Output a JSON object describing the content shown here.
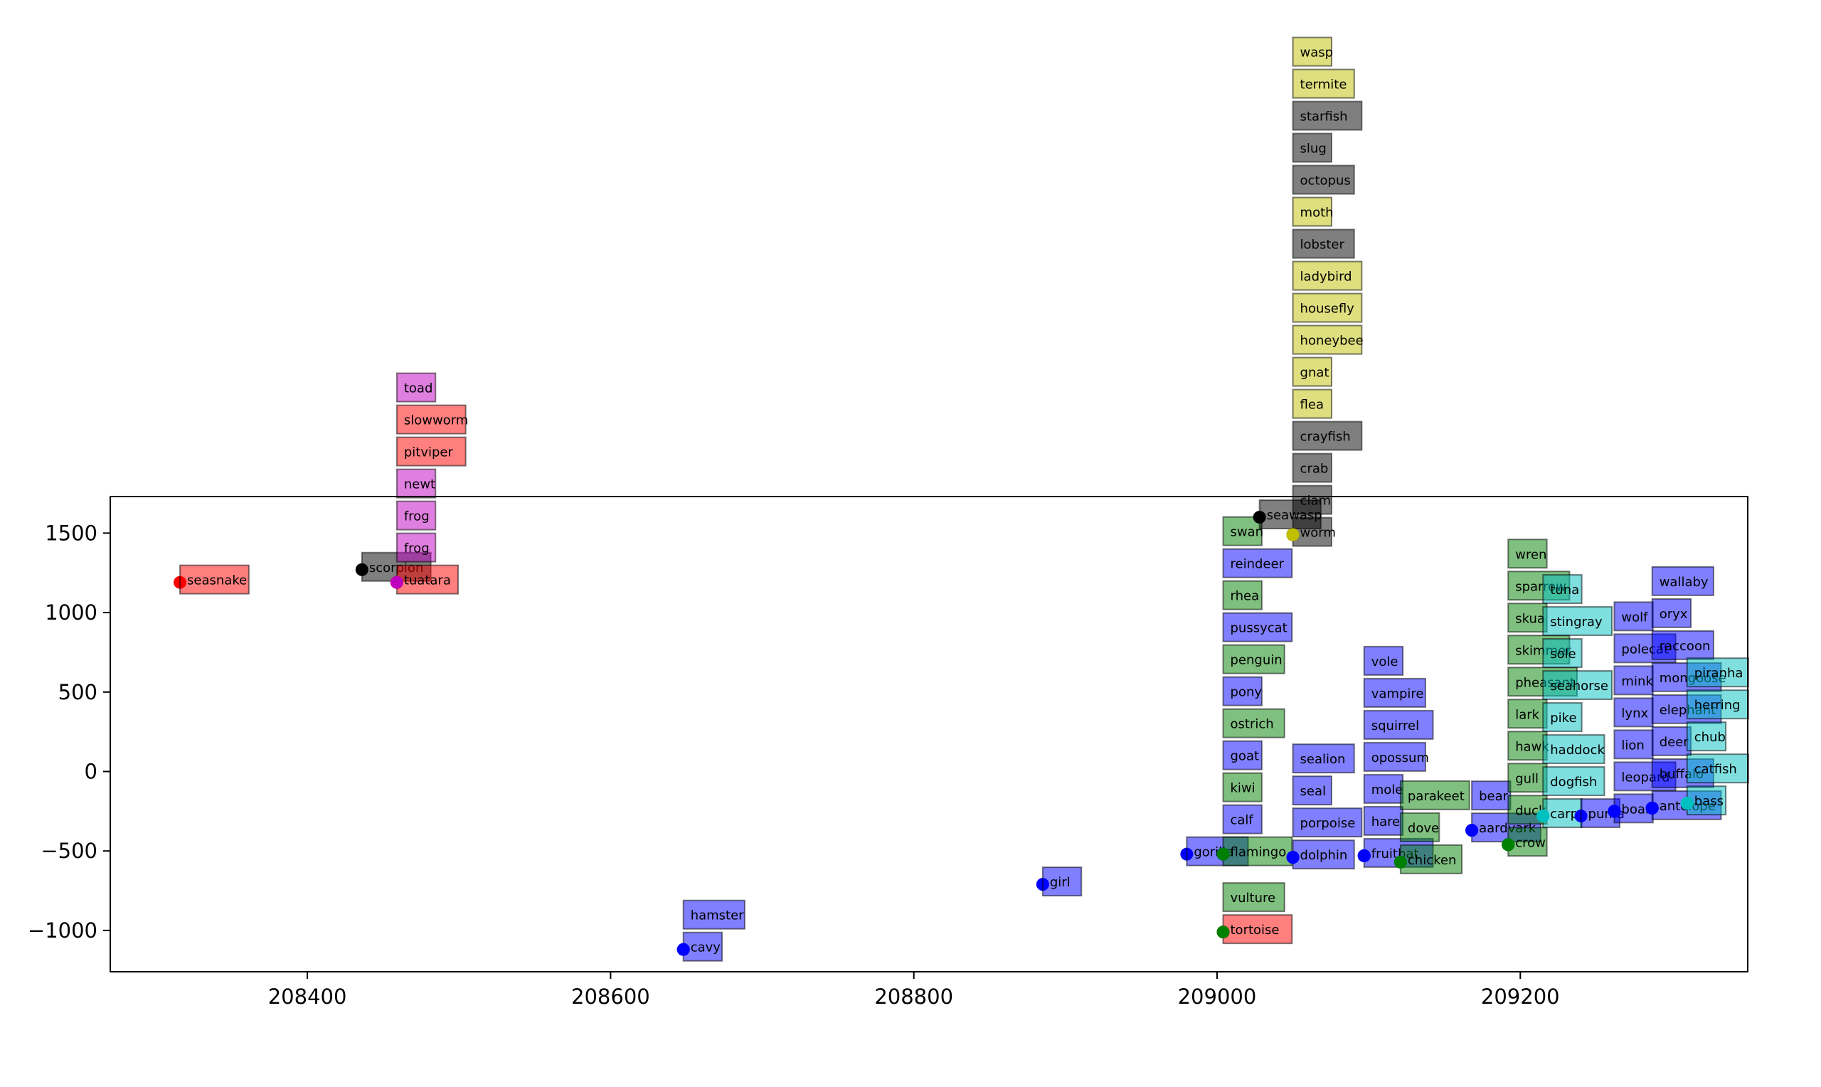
{
  "colors": {
    "mammal": "#0000ff",
    "bird": "#008000",
    "reptile": "#ff0000",
    "amphibian": "#bf00bf",
    "fish": "#00bfbf",
    "insect": "#bfbf00",
    "invertebrate": "#000000"
  },
  "chart_data": {
    "type": "scatter",
    "title": "",
    "xlabel": "",
    "ylabel": "",
    "xlim": [
      208270,
      209350
    ],
    "ylim": [
      -1260,
      1730
    ],
    "xticks": [
      {
        "value": 208400,
        "label": "208400"
      },
      {
        "value": 208600,
        "label": "208600"
      },
      {
        "value": 208800,
        "label": "208800"
      },
      {
        "value": 209000,
        "label": "209000"
      },
      {
        "value": 209200,
        "label": "209200"
      }
    ],
    "yticks": [
      {
        "value": 1500,
        "label": "1500"
      },
      {
        "value": 1000,
        "label": "1000"
      },
      {
        "value": 500,
        "label": "500"
      },
      {
        "value": 0,
        "label": "0"
      },
      {
        "value": -500,
        "label": "−500"
      },
      {
        "value": -1000,
        "label": "−1000"
      }
    ],
    "grid": false,
    "points": [
      {
        "label": "seasnake",
        "x": 208316,
        "y": 1190,
        "cls": "reptile"
      },
      {
        "label": "scorpion",
        "x": 208436,
        "y": 1270,
        "cls": "invertebrate"
      },
      {
        "label": "tuatara",
        "x": 208459,
        "y": 1190,
        "cls": "reptile"
      },
      {
        "label": "frog",
        "x": 208459,
        "y": 1190,
        "cls": "amphibian",
        "stack": [
          28
        ]
      },
      {
        "label": "frog",
        "x": 208459,
        "y": 1190,
        "cls": "amphibian"
      },
      {
        "label": "newt",
        "x": 208459,
        "y": 1190,
        "cls": "amphibian"
      },
      {
        "label": "pitviper",
        "x": 208459,
        "y": 1190,
        "cls": "reptile"
      },
      {
        "label": "slowworm",
        "x": 208459,
        "y": 1190,
        "cls": "reptile"
      },
      {
        "label": "toad",
        "x": 208459,
        "y": 1190,
        "cls": "amphibian"
      },
      {
        "label": "cavy",
        "x": 208648,
        "y": -1120,
        "cls": "mammal"
      },
      {
        "label": "hamster",
        "x": 208648,
        "y": -1120,
        "cls": "mammal"
      },
      {
        "label": "girl",
        "x": 208885,
        "y": -710,
        "cls": "mammal"
      },
      {
        "label": "gorilla",
        "x": 208980,
        "y": -520,
        "cls": "mammal"
      },
      {
        "label": "tortoise",
        "x": 209004,
        "y": -1010,
        "cls": "reptile"
      },
      {
        "label": "vulture",
        "x": 209004,
        "y": -1010,
        "cls": "bird"
      },
      {
        "label": "flamingo",
        "x": 209004,
        "y": -520,
        "cls": "bird"
      },
      {
        "label": "calf",
        "x": 209004,
        "y": -520,
        "cls": "mammal"
      },
      {
        "label": "kiwi",
        "x": 209004,
        "y": -520,
        "cls": "bird"
      },
      {
        "label": "goat",
        "x": 209004,
        "y": -520,
        "cls": "mammal"
      },
      {
        "label": "ostrich",
        "x": 209004,
        "y": -520,
        "cls": "bird"
      },
      {
        "label": "pony",
        "x": 209004,
        "y": -520,
        "cls": "mammal"
      },
      {
        "label": "penguin",
        "x": 209004,
        "y": -520,
        "cls": "bird"
      },
      {
        "label": "pussycat",
        "x": 209004,
        "y": -520,
        "cls": "mammal"
      },
      {
        "label": "rhea",
        "x": 209004,
        "y": -520,
        "cls": "bird"
      },
      {
        "label": "reindeer",
        "x": 209004,
        "y": -520,
        "cls": "mammal"
      },
      {
        "label": "swan",
        "x": 209004,
        "y": -520,
        "cls": "bird"
      },
      {
        "label": "dolphin",
        "x": 209050,
        "y": -540,
        "cls": "mammal"
      },
      {
        "label": "porpoise",
        "x": 209050,
        "y": -540,
        "cls": "mammal"
      },
      {
        "label": "seal",
        "x": 209050,
        "y": -540,
        "cls": "mammal"
      },
      {
        "label": "sealion",
        "x": 209050,
        "y": -540,
        "cls": "mammal"
      },
      {
        "label": "seawasp",
        "x": 209028,
        "y": 1600,
        "cls": "invertebrate"
      },
      {
        "label": "worm",
        "x": 209050,
        "y": 1490,
        "cls": "invertebrate"
      },
      {
        "label": "clam",
        "x": 209050,
        "y": 1490,
        "cls": "invertebrate"
      },
      {
        "label": "crab",
        "x": 209050,
        "y": 1490,
        "cls": "invertebrate"
      },
      {
        "label": "crayfish",
        "x": 209050,
        "y": 1490,
        "cls": "invertebrate"
      },
      {
        "label": "flea",
        "x": 209050,
        "y": 1490,
        "cls": "insect"
      },
      {
        "label": "gnat",
        "x": 209050,
        "y": 1490,
        "cls": "insect"
      },
      {
        "label": "honeybee",
        "x": 209050,
        "y": 1490,
        "cls": "insect"
      },
      {
        "label": "housefly",
        "x": 209050,
        "y": 1490,
        "cls": "insect"
      },
      {
        "label": "ladybird",
        "x": 209050,
        "y": 1490,
        "cls": "insect"
      },
      {
        "label": "lobster",
        "x": 209050,
        "y": 1490,
        "cls": "invertebrate"
      },
      {
        "label": "moth",
        "x": 209050,
        "y": 1490,
        "cls": "insect"
      },
      {
        "label": "octopus",
        "x": 209050,
        "y": 1490,
        "cls": "invertebrate"
      },
      {
        "label": "slug",
        "x": 209050,
        "y": 1490,
        "cls": "invertebrate"
      },
      {
        "label": "starfish",
        "x": 209050,
        "y": 1490,
        "cls": "invertebrate"
      },
      {
        "label": "termite",
        "x": 209050,
        "y": 1490,
        "cls": "insect"
      },
      {
        "label": "wasp",
        "x": 209050,
        "y": 1490,
        "cls": "insect"
      },
      {
        "label": "fruitbat",
        "x": 209097,
        "y": -530,
        "cls": "mammal"
      },
      {
        "label": "hare",
        "x": 209097,
        "y": -530,
        "cls": "mammal"
      },
      {
        "label": "mole",
        "x": 209097,
        "y": -530,
        "cls": "mammal"
      },
      {
        "label": "opossum",
        "x": 209097,
        "y": -530,
        "cls": "mammal"
      },
      {
        "label": "squirrel",
        "x": 209097,
        "y": -530,
        "cls": "mammal"
      },
      {
        "label": "vampire",
        "x": 209097,
        "y": -530,
        "cls": "mammal"
      },
      {
        "label": "vole",
        "x": 209097,
        "y": -530,
        "cls": "mammal"
      },
      {
        "label": "chicken",
        "x": 209121,
        "y": -570,
        "cls": "bird"
      },
      {
        "label": "dove",
        "x": 209121,
        "y": -570,
        "cls": "bird"
      },
      {
        "label": "parakeet",
        "x": 209121,
        "y": -570,
        "cls": "bird"
      },
      {
        "label": "aardvark",
        "x": 209168,
        "y": -370,
        "cls": "mammal"
      },
      {
        "label": "bear",
        "x": 209168,
        "y": -370,
        "cls": "mammal"
      },
      {
        "label": "crow",
        "x": 209192,
        "y": -460,
        "cls": "bird"
      },
      {
        "label": "duck",
        "x": 209192,
        "y": -460,
        "cls": "bird"
      },
      {
        "label": "gull",
        "x": 209192,
        "y": -460,
        "cls": "bird"
      },
      {
        "label": "hawk",
        "x": 209192,
        "y": -460,
        "cls": "bird"
      },
      {
        "label": "lark",
        "x": 209192,
        "y": -460,
        "cls": "bird"
      },
      {
        "label": "pheasant",
        "x": 209192,
        "y": -460,
        "cls": "bird"
      },
      {
        "label": "skimmer",
        "x": 209192,
        "y": -460,
        "cls": "bird"
      },
      {
        "label": "skua",
        "x": 209192,
        "y": -460,
        "cls": "bird"
      },
      {
        "label": "sparrow",
        "x": 209192,
        "y": -460,
        "cls": "bird"
      },
      {
        "label": "wren",
        "x": 209192,
        "y": -460,
        "cls": "bird"
      },
      {
        "label": "carp",
        "x": 209215,
        "y": -280,
        "cls": "fish"
      },
      {
        "label": "dogfish",
        "x": 209215,
        "y": -280,
        "cls": "fish"
      },
      {
        "label": "haddock",
        "x": 209215,
        "y": -280,
        "cls": "fish"
      },
      {
        "label": "pike",
        "x": 209215,
        "y": -280,
        "cls": "fish"
      },
      {
        "label": "seahorse",
        "x": 209215,
        "y": -280,
        "cls": "fish"
      },
      {
        "label": "sole",
        "x": 209215,
        "y": -280,
        "cls": "fish"
      },
      {
        "label": "stingray",
        "x": 209215,
        "y": -280,
        "cls": "fish"
      },
      {
        "label": "tuna",
        "x": 209215,
        "y": -280,
        "cls": "fish"
      },
      {
        "label": "puma",
        "x": 209240,
        "y": -280,
        "cls": "mammal"
      },
      {
        "label": "boar",
        "x": 209262,
        "y": -250,
        "cls": "mammal"
      },
      {
        "label": "leopard",
        "x": 209262,
        "y": -250,
        "cls": "mammal"
      },
      {
        "label": "lion",
        "x": 209262,
        "y": -250,
        "cls": "mammal"
      },
      {
        "label": "lynx",
        "x": 209262,
        "y": -250,
        "cls": "mammal"
      },
      {
        "label": "mink",
        "x": 209262,
        "y": -250,
        "cls": "mammal"
      },
      {
        "label": "polecat",
        "x": 209262,
        "y": -250,
        "cls": "mammal"
      },
      {
        "label": "wolf",
        "x": 209262,
        "y": -250,
        "cls": "mammal"
      },
      {
        "label": "antelope",
        "x": 209287,
        "y": -230,
        "cls": "mammal"
      },
      {
        "label": "buffalo",
        "x": 209287,
        "y": -230,
        "cls": "mammal"
      },
      {
        "label": "deer",
        "x": 209287,
        "y": -230,
        "cls": "mammal"
      },
      {
        "label": "elephant",
        "x": 209287,
        "y": -230,
        "cls": "mammal"
      },
      {
        "label": "mongoose",
        "x": 209287,
        "y": -230,
        "cls": "mammal"
      },
      {
        "label": "raccoon",
        "x": 209287,
        "y": -230,
        "cls": "mammal"
      },
      {
        "label": "oryx",
        "x": 209287,
        "y": -230,
        "cls": "mammal"
      },
      {
        "label": "wallaby",
        "x": 209287,
        "y": -230,
        "cls": "mammal"
      },
      {
        "label": "bass",
        "x": 209310,
        "y": -200,
        "cls": "fish"
      },
      {
        "label": "catfish",
        "x": 209310,
        "y": -200,
        "cls": "fish"
      },
      {
        "label": "chub",
        "x": 209310,
        "y": -200,
        "cls": "fish"
      },
      {
        "label": "herring",
        "x": 209310,
        "y": -200,
        "cls": "fish"
      },
      {
        "label": "piranha",
        "x": 209310,
        "y": -200,
        "cls": "fish"
      }
    ]
  }
}
